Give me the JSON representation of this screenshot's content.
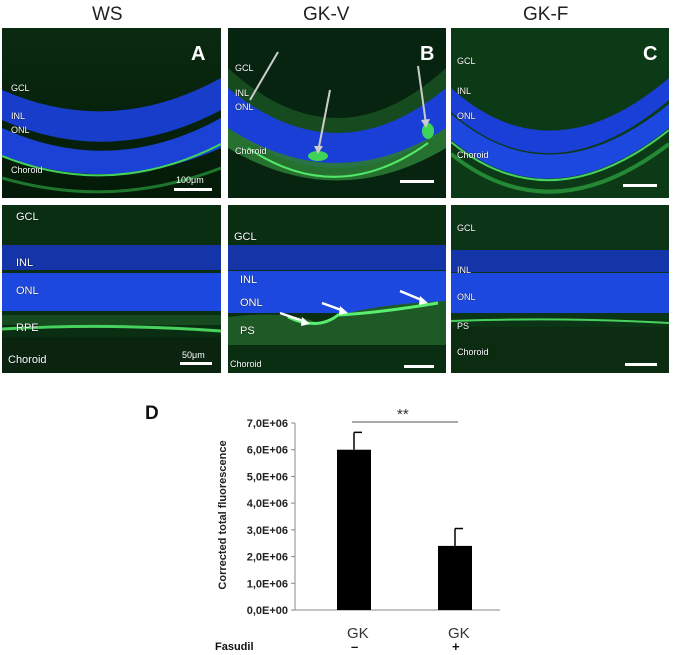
{
  "figure": {
    "column_titles": [
      "WS",
      "GK-V",
      "GK-F"
    ],
    "panel_letters": [
      "A",
      "B",
      "C"
    ],
    "top_labels": {
      "ws": [
        "GCL",
        "INL",
        "ONL",
        "Choroid"
      ],
      "gkv": [
        "GCL",
        "INL",
        "ONL",
        "Choroid"
      ],
      "gkf": [
        "GCL",
        "INL",
        "ONL",
        "Choroid"
      ]
    },
    "bottom_labels": {
      "ws": [
        "GCL",
        "INL",
        "ONL",
        "RPE",
        "Choroid"
      ],
      "gkv": [
        "GCL",
        "INL",
        "ONL",
        "PS",
        "Choroid"
      ],
      "gkf": [
        "GCL",
        "INL",
        "ONL",
        "PS",
        "Choroid"
      ]
    },
    "scale_top": "100μm",
    "scale_bottom": "50μm",
    "panel_d_letter": "D",
    "significance": "**",
    "treatment_label": "Fasudil"
  },
  "chart_data": {
    "type": "bar",
    "categories": [
      "GK",
      "GK"
    ],
    "treatment_signs": [
      "–",
      "+"
    ],
    "values": [
      6000000.0,
      2400000.0
    ],
    "error": [
      650000.0,
      650000.0
    ],
    "ylabel": "Corrected total fluorescence",
    "ylim": [
      0,
      7000000.0
    ],
    "yticks": [
      "0,0E+00",
      "1,0E+06",
      "2,0E+06",
      "3,0E+06",
      "4,0E+06",
      "5,0E+06",
      "6,0E+06",
      "7,0E+06"
    ],
    "bar_color": "#000000",
    "grid": false
  }
}
